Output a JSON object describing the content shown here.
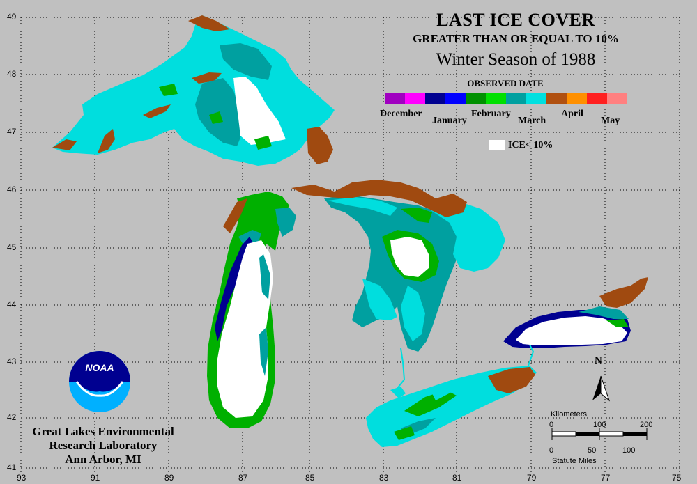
{
  "title": {
    "line1": "LAST ICE COVER",
    "line2": "GREATER THAN OR EQUAL TO 10%",
    "line3": "Winter Season of 1988"
  },
  "legend": {
    "heading": "OBSERVED DATE",
    "months": [
      "December",
      "January",
      "February",
      "March",
      "April",
      "May"
    ],
    "colors": [
      "#a000c0",
      "#ff00ff",
      "#000090",
      "#0000ff",
      "#009000",
      "#00e000",
      "#00a0a0",
      "#00e0e0",
      "#b05010",
      "#ff9000",
      "#ff2020",
      "#ff8080"
    ],
    "ice_label": "ICE< 10%"
  },
  "colors": {
    "background": "#c0c0c0",
    "land": "#c0c0c0",
    "ice_lt_10": "#ffffff",
    "january": "#000090",
    "february": "#00b000",
    "march_early": "#00a0a0",
    "march_late": "#00e0e0",
    "april": "#a04a10"
  },
  "latitude_labels": [
    "49",
    "48",
    "47",
    "46",
    "45",
    "44",
    "43",
    "42",
    "41"
  ],
  "longitude_labels": [
    "93",
    "91",
    "89",
    "87",
    "85",
    "83",
    "81",
    "79",
    "77",
    "75"
  ],
  "compass": {
    "label": "N"
  },
  "scale": {
    "units_top": "Kilometers",
    "ticks_top": [
      "0",
      "100",
      "200"
    ],
    "ticks_bottom": [
      "0",
      "50",
      "100"
    ],
    "units_bottom": "Statute Miles"
  },
  "logo": {
    "text": "NOAA"
  },
  "institution": {
    "line1": "Great Lakes Environmental",
    "line2": "Research Laboratory",
    "line3": "Ann Arbor, MI"
  }
}
